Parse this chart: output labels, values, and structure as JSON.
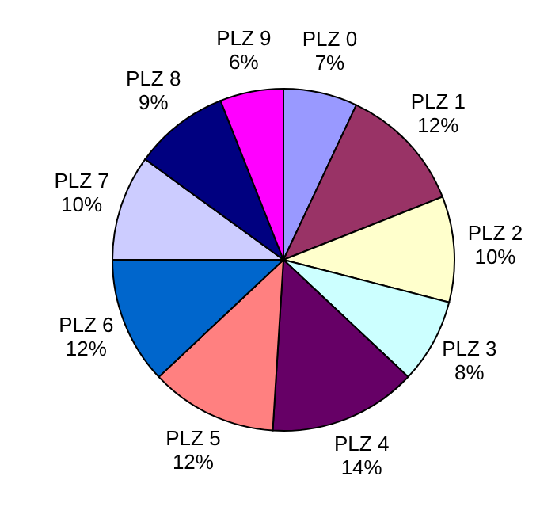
{
  "chart_data": {
    "type": "pie",
    "categories": [
      "PLZ 0",
      "PLZ 1",
      "PLZ 2",
      "PLZ 3",
      "PLZ 4",
      "PLZ 5",
      "PLZ 6",
      "PLZ 7",
      "PLZ 8",
      "PLZ 9"
    ],
    "values": [
      7,
      12,
      10,
      8,
      14,
      12,
      12,
      10,
      9,
      6
    ],
    "value_labels": [
      "7%",
      "12%",
      "10%",
      "8%",
      "14%",
      "12%",
      "12%",
      "10%",
      "9%",
      "6%"
    ],
    "colors": [
      "#9999ff",
      "#993366",
      "#ffffcc",
      "#ccffff",
      "#660066",
      "#ff8080",
      "#0066cc",
      "#ccccff",
      "#000080",
      "#ff00ff"
    ],
    "legend": false
  }
}
